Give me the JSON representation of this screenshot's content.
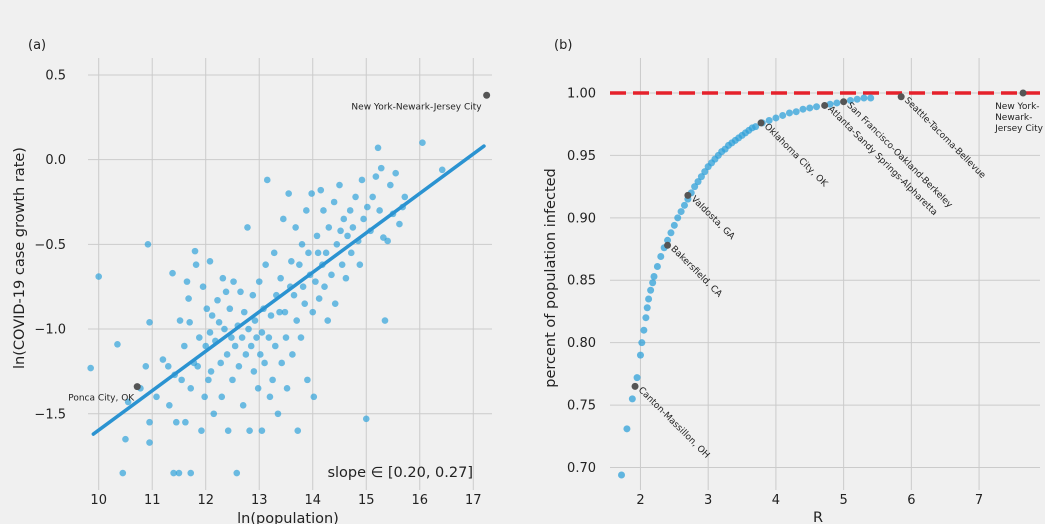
{
  "colors": {
    "background": "#f0f0f0",
    "grid": "#cbcbcb",
    "point": "#30a2da",
    "fit_line": "#2b93d1",
    "highlight": "#555555",
    "dashed_line": "#e5212b",
    "text": "#222222"
  },
  "chart_data": [
    {
      "type": "scatter",
      "panel_label": "(a)",
      "title": "",
      "xlabel": "ln(population)",
      "ylabel": "ln(COVID-19 case growth rate)",
      "xlim": [
        9.8,
        17.35
      ],
      "ylim": [
        -1.95,
        0.6
      ],
      "xticks": [
        10,
        11,
        12,
        13,
        14,
        15,
        16,
        17
      ],
      "yticks": [
        0.5,
        0.0,
        -0.5,
        -1.0,
        -1.5
      ],
      "ytick_labels": [
        "0.5",
        "0.0",
        "−0.5",
        "−1.0",
        "−1.5"
      ],
      "grid": true,
      "fit_line": {
        "x": [
          9.9,
          17.2
        ],
        "y": [
          -1.62,
          0.08
        ]
      },
      "slope_text": "slope ∈ [0.20, 0.27]",
      "highlighted": [
        {
          "label": "New York-Newark-Jersey City",
          "x": 17.25,
          "y": 0.38
        },
        {
          "label": "Ponca City, OK",
          "x": 10.72,
          "y": -1.34
        }
      ],
      "points": [
        [
          9.85,
          -1.23
        ],
        [
          10.0,
          -0.69
        ],
        [
          10.35,
          -1.09
        ],
        [
          10.45,
          -1.85
        ],
        [
          10.5,
          -1.65
        ],
        [
          10.55,
          -1.43
        ],
        [
          10.78,
          -1.35
        ],
        [
          10.88,
          -1.22
        ],
        [
          10.92,
          -0.5
        ],
        [
          10.95,
          -0.96
        ],
        [
          10.95,
          -1.55
        ],
        [
          10.95,
          -1.67
        ],
        [
          11.08,
          -1.4
        ],
        [
          11.2,
          -1.18
        ],
        [
          11.3,
          -1.22
        ],
        [
          11.32,
          -1.45
        ],
        [
          11.38,
          -0.67
        ],
        [
          11.4,
          -1.85
        ],
        [
          11.42,
          -1.27
        ],
        [
          11.45,
          -1.55
        ],
        [
          11.5,
          -1.85
        ],
        [
          11.52,
          -0.95
        ],
        [
          11.55,
          -1.3
        ],
        [
          11.6,
          -1.1
        ],
        [
          11.62,
          -1.55
        ],
        [
          11.65,
          -0.72
        ],
        [
          11.68,
          -0.82
        ],
        [
          11.7,
          -0.96
        ],
        [
          11.72,
          -1.35
        ],
        [
          11.72,
          -1.85
        ],
        [
          11.78,
          -1.2
        ],
        [
          11.8,
          -0.54
        ],
        [
          11.82,
          -0.62
        ],
        [
          11.85,
          -1.22
        ],
        [
          11.88,
          -1.05
        ],
        [
          11.92,
          -1.6
        ],
        [
          11.95,
          -0.75
        ],
        [
          11.98,
          -1.4
        ],
        [
          12.0,
          -1.1
        ],
        [
          12.02,
          -0.88
        ],
        [
          12.05,
          -1.3
        ],
        [
          12.08,
          -1.02
        ],
        [
          12.08,
          -0.6
        ],
        [
          12.1,
          -1.25
        ],
        [
          12.12,
          -0.92
        ],
        [
          12.15,
          -1.5
        ],
        [
          12.18,
          -1.07
        ],
        [
          12.22,
          -0.83
        ],
        [
          12.25,
          -0.96
        ],
        [
          12.28,
          -1.2
        ],
        [
          12.3,
          -1.4
        ],
        [
          12.32,
          -0.7
        ],
        [
          12.35,
          -1.0
        ],
        [
          12.38,
          -0.78
        ],
        [
          12.4,
          -1.15
        ],
        [
          12.42,
          -1.6
        ],
        [
          12.45,
          -0.88
        ],
        [
          12.48,
          -1.05
        ],
        [
          12.5,
          -1.3
        ],
        [
          12.52,
          -0.72
        ],
        [
          12.55,
          -1.1
        ],
        [
          12.58,
          -1.85
        ],
        [
          12.6,
          -0.98
        ],
        [
          12.62,
          -1.22
        ],
        [
          12.65,
          -0.78
        ],
        [
          12.68,
          -1.05
        ],
        [
          12.7,
          -1.45
        ],
        [
          12.72,
          -0.9
        ],
        [
          12.75,
          -1.15
        ],
        [
          12.78,
          -0.4
        ],
        [
          12.8,
          -1.0
        ],
        [
          12.82,
          -1.6
        ],
        [
          12.85,
          -1.1
        ],
        [
          12.88,
          -0.8
        ],
        [
          12.9,
          -1.25
        ],
        [
          12.92,
          -0.95
        ],
        [
          12.95,
          -1.05
        ],
        [
          12.98,
          -1.35
        ],
        [
          13.0,
          -0.72
        ],
        [
          13.02,
          -1.15
        ],
        [
          13.05,
          -1.6
        ],
        [
          13.05,
          -1.02
        ],
        [
          13.08,
          -0.88
        ],
        [
          13.1,
          -1.2
        ],
        [
          13.12,
          -0.62
        ],
        [
          13.15,
          -0.12
        ],
        [
          13.18,
          -1.05
        ],
        [
          13.2,
          -1.4
        ],
        [
          13.22,
          -0.92
        ],
        [
          13.25,
          -1.3
        ],
        [
          13.28,
          -0.55
        ],
        [
          13.3,
          -1.1
        ],
        [
          13.32,
          -0.8
        ],
        [
          13.35,
          -1.5
        ],
        [
          13.38,
          -0.9
        ],
        [
          13.4,
          -0.7
        ],
        [
          13.42,
          -1.2
        ],
        [
          13.45,
          -0.35
        ],
        [
          13.48,
          -0.9
        ],
        [
          13.5,
          -1.05
        ],
        [
          13.52,
          -1.35
        ],
        [
          13.55,
          -0.2
        ],
        [
          13.58,
          -0.75
        ],
        [
          13.6,
          -0.6
        ],
        [
          13.62,
          -1.15
        ],
        [
          13.65,
          -0.8
        ],
        [
          13.68,
          -0.4
        ],
        [
          13.7,
          -0.95
        ],
        [
          13.72,
          -1.6
        ],
        [
          13.75,
          -0.62
        ],
        [
          13.78,
          -1.05
        ],
        [
          13.8,
          -0.5
        ],
        [
          13.82,
          -0.75
        ],
        [
          13.85,
          -0.85
        ],
        [
          13.88,
          -0.3
        ],
        [
          13.9,
          -1.3
        ],
        [
          13.92,
          -0.55
        ],
        [
          13.95,
          -0.68
        ],
        [
          13.98,
          -0.2
        ],
        [
          14.0,
          -0.9
        ],
        [
          14.02,
          -1.4
        ],
        [
          14.05,
          -0.72
        ],
        [
          14.08,
          -0.45
        ],
        [
          14.1,
          -0.55
        ],
        [
          14.12,
          -0.82
        ],
        [
          14.15,
          -0.18
        ],
        [
          14.18,
          -0.62
        ],
        [
          14.2,
          -0.3
        ],
        [
          14.22,
          -0.75
        ],
        [
          14.25,
          -0.55
        ],
        [
          14.28,
          -0.95
        ],
        [
          14.3,
          -0.4
        ],
        [
          14.35,
          -0.68
        ],
        [
          14.4,
          -0.25
        ],
        [
          14.42,
          -0.85
        ],
        [
          14.45,
          -0.5
        ],
        [
          14.5,
          -0.15
        ],
        [
          14.52,
          -0.42
        ],
        [
          14.55,
          -0.62
        ],
        [
          14.58,
          -0.35
        ],
        [
          14.62,
          -0.7
        ],
        [
          14.65,
          -0.45
        ],
        [
          14.7,
          -0.3
        ],
        [
          14.72,
          -0.55
        ],
        [
          14.75,
          -0.4
        ],
        [
          14.8,
          -0.22
        ],
        [
          14.85,
          -0.48
        ],
        [
          14.88,
          -0.62
        ],
        [
          14.92,
          -0.12
        ],
        [
          14.95,
          -0.35
        ],
        [
          15.0,
          -1.53
        ],
        [
          15.02,
          -0.28
        ],
        [
          15.08,
          -0.42
        ],
        [
          15.12,
          -0.22
        ],
        [
          15.18,
          -0.1
        ],
        [
          15.22,
          0.07
        ],
        [
          15.25,
          -0.3
        ],
        [
          15.28,
          -0.05
        ],
        [
          15.32,
          -0.46
        ],
        [
          15.35,
          -0.95
        ],
        [
          15.4,
          -0.48
        ],
        [
          15.45,
          -0.15
        ],
        [
          15.5,
          -0.32
        ],
        [
          15.55,
          -0.08
        ],
        [
          15.62,
          -0.38
        ],
        [
          15.68,
          -0.28
        ],
        [
          15.72,
          -0.22
        ],
        [
          16.05,
          0.1
        ],
        [
          16.42,
          -0.06
        ]
      ]
    },
    {
      "type": "scatter",
      "panel_label": "(b)",
      "title": "",
      "xlabel": "R",
      "ylabel": "percent of population infected",
      "xlim": [
        1.55,
        7.9
      ],
      "ylim": [
        0.682,
        1.02
      ],
      "xticks": [
        2,
        3,
        4,
        5,
        6,
        7
      ],
      "yticks": [
        1.0,
        0.95,
        0.9,
        0.85,
        0.8,
        0.75,
        0.7
      ],
      "ytick_labels": [
        "1.00",
        "0.95",
        "0.90",
        "0.85",
        "0.80",
        "0.75",
        "0.70"
      ],
      "grid": true,
      "reference_line": 1.0,
      "labeled_points": [
        {
          "label": "Canton-Massillon, OH",
          "x": 1.92,
          "y": 0.765
        },
        {
          "label": "Bakersfield, CA",
          "x": 2.4,
          "y": 0.878
        },
        {
          "label": "Valdosta, GA",
          "x": 2.7,
          "y": 0.918
        },
        {
          "label": "Oklahoma City, OK",
          "x": 3.78,
          "y": 0.976
        },
        {
          "label": "Atlanta-Sandy Springs-Alpharetta",
          "x": 4.72,
          "y": 0.99
        },
        {
          "label": "San Francisco-Oakland-Berkeley",
          "x": 5.0,
          "y": 0.993
        },
        {
          "label": "Seattle-Tacoma-Bellevue",
          "x": 5.85,
          "y": 0.997
        },
        {
          "label": "New York-Newark-Jersey City",
          "x": 7.65,
          "y": 1.0
        }
      ],
      "points": [
        [
          1.72,
          0.694
        ],
        [
          1.8,
          0.731
        ],
        [
          1.88,
          0.755
        ],
        [
          1.95,
          0.772
        ],
        [
          2.0,
          0.79
        ],
        [
          2.02,
          0.8
        ],
        [
          2.05,
          0.81
        ],
        [
          2.08,
          0.82
        ],
        [
          2.1,
          0.828
        ],
        [
          2.12,
          0.835
        ],
        [
          2.15,
          0.842
        ],
        [
          2.18,
          0.848
        ],
        [
          2.2,
          0.853
        ],
        [
          2.25,
          0.861
        ],
        [
          2.3,
          0.869
        ],
        [
          2.35,
          0.876
        ],
        [
          2.4,
          0.882
        ],
        [
          2.45,
          0.888
        ],
        [
          2.5,
          0.894
        ],
        [
          2.55,
          0.9
        ],
        [
          2.6,
          0.905
        ],
        [
          2.65,
          0.91
        ],
        [
          2.7,
          0.915
        ],
        [
          2.75,
          0.92
        ],
        [
          2.8,
          0.925
        ],
        [
          2.85,
          0.929
        ],
        [
          2.9,
          0.933
        ],
        [
          2.95,
          0.937
        ],
        [
          3.0,
          0.941
        ],
        [
          3.05,
          0.944
        ],
        [
          3.1,
          0.947
        ],
        [
          3.15,
          0.95
        ],
        [
          3.2,
          0.953
        ],
        [
          3.25,
          0.955
        ],
        [
          3.3,
          0.958
        ],
        [
          3.35,
          0.96
        ],
        [
          3.4,
          0.962
        ],
        [
          3.45,
          0.964
        ],
        [
          3.5,
          0.966
        ],
        [
          3.55,
          0.968
        ],
        [
          3.6,
          0.97
        ],
        [
          3.65,
          0.972
        ],
        [
          3.7,
          0.973
        ],
        [
          3.8,
          0.976
        ],
        [
          3.9,
          0.978
        ],
        [
          4.0,
          0.98
        ],
        [
          4.1,
          0.982
        ],
        [
          4.2,
          0.984
        ],
        [
          4.3,
          0.985
        ],
        [
          4.4,
          0.987
        ],
        [
          4.5,
          0.988
        ],
        [
          4.6,
          0.989
        ],
        [
          4.8,
          0.991
        ],
        [
          4.9,
          0.992
        ],
        [
          5.1,
          0.994
        ],
        [
          5.2,
          0.995
        ],
        [
          5.3,
          0.996
        ],
        [
          5.4,
          0.996
        ]
      ]
    }
  ]
}
